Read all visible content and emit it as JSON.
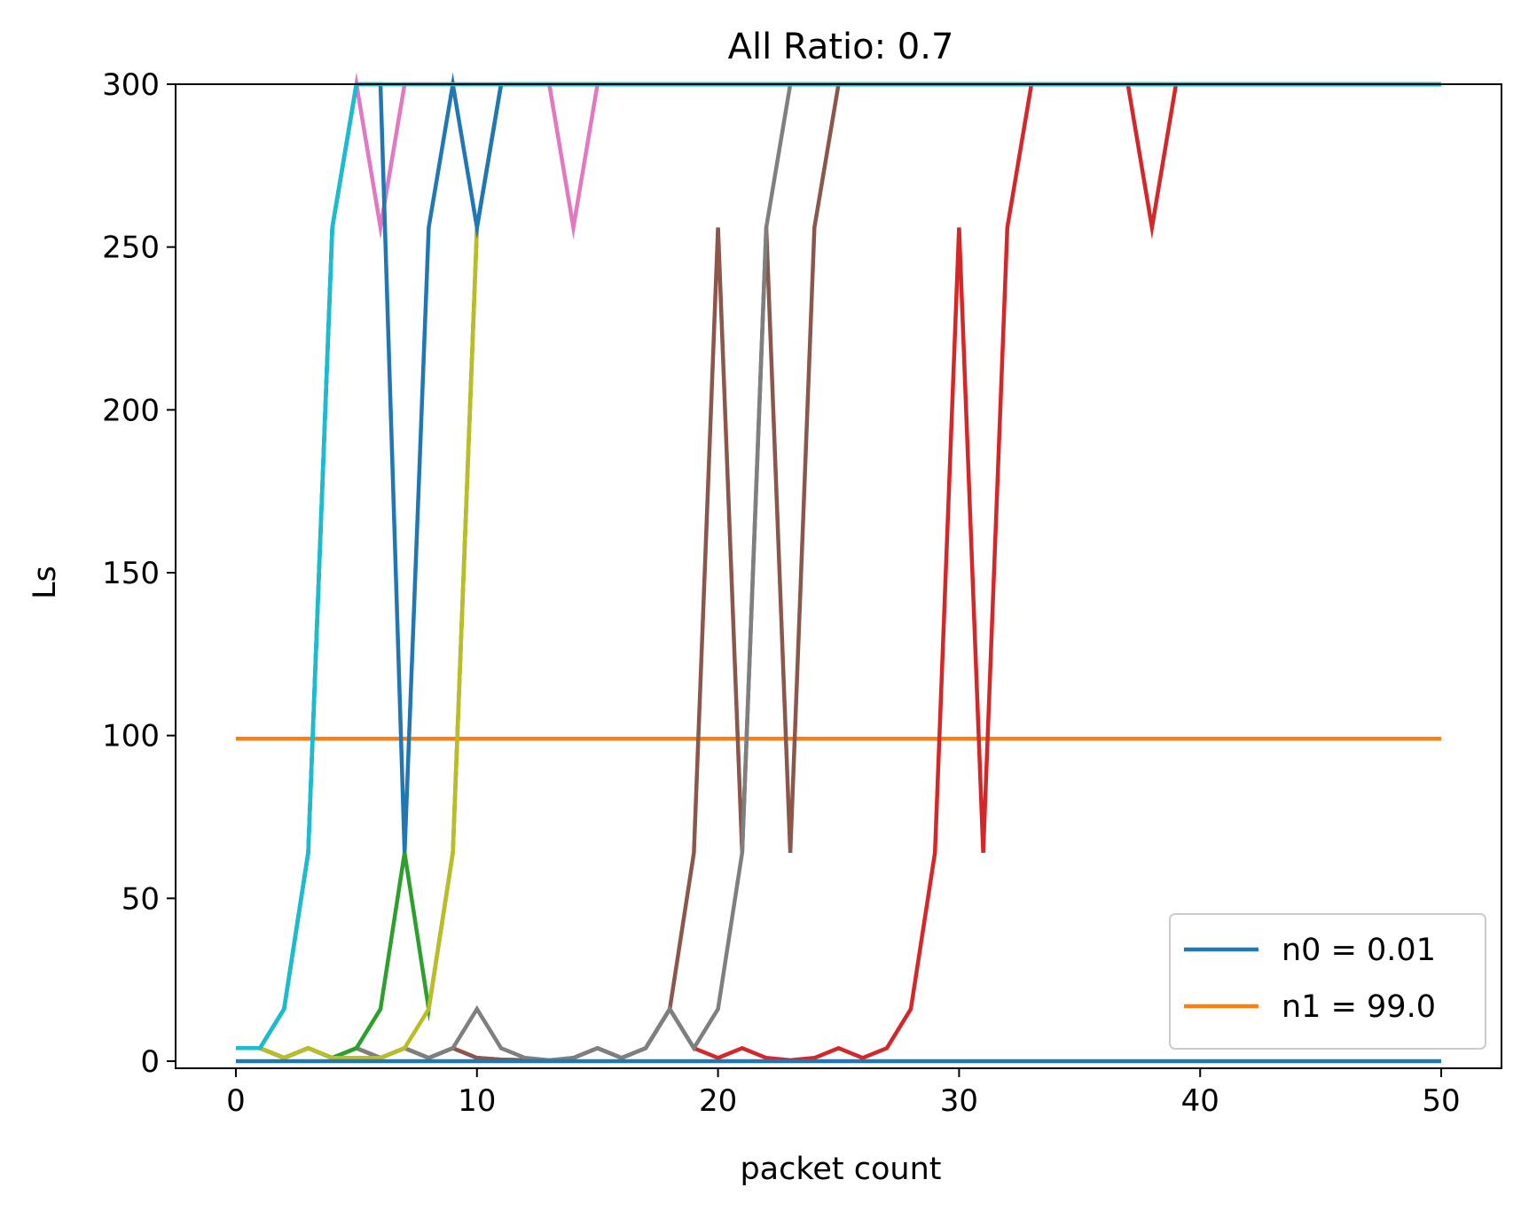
{
  "chart_data": {
    "type": "line",
    "title": "All Ratio: 0.7",
    "xlabel": "packet count",
    "ylabel": "Ls",
    "xlim": [
      -2.5,
      52.5
    ],
    "ylim": [
      0,
      300
    ],
    "xticks": [
      0,
      10,
      20,
      30,
      40,
      50
    ],
    "yticks": [
      0,
      50,
      100,
      150,
      200,
      250,
      300
    ],
    "grid": false,
    "legend": {
      "placement": "lower-right",
      "entries": [
        {
          "label": "n0 = 0.01",
          "color": "#1f77b4"
        },
        {
          "label": "n1 = 99.0",
          "color": "#ff7f0e"
        }
      ]
    },
    "x": [
      0,
      1,
      2,
      3,
      4,
      5,
      6,
      7,
      8,
      9,
      10,
      11,
      12,
      13,
      14,
      15,
      16,
      17,
      18,
      19,
      20,
      21,
      22,
      23,
      24,
      25,
      26,
      27,
      28,
      29,
      30,
      31,
      32,
      33,
      34,
      35,
      36,
      37,
      38,
      39,
      40,
      41,
      42,
      43,
      44,
      45,
      46,
      47,
      48,
      49,
      50
    ],
    "series": [
      {
        "color": "#ff7f0e",
        "values": [
          99,
          99,
          99,
          99,
          99,
          99,
          99,
          99,
          99,
          99,
          99,
          99,
          99,
          99,
          99,
          99,
          99,
          99,
          99,
          99,
          99,
          99,
          99,
          99,
          99,
          99,
          99,
          99,
          99,
          99,
          99,
          99,
          99,
          99,
          99,
          99,
          99,
          99,
          99,
          99,
          99,
          99,
          99,
          99,
          99,
          99,
          99,
          99,
          99,
          99,
          99
        ]
      },
      {
        "color": "#d62728",
        "values": [
          4,
          4,
          1,
          4,
          1,
          4,
          1,
          4,
          1,
          4,
          1,
          0.5,
          0.3,
          0.2,
          1,
          4,
          1,
          4,
          16,
          4,
          1,
          4,
          1,
          0.3,
          1,
          4,
          1,
          4,
          16,
          64,
          256,
          64,
          256,
          300,
          300,
          300,
          300,
          300,
          256,
          300,
          300,
          300,
          300,
          300,
          300,
          300,
          300,
          300,
          300,
          300,
          300
        ]
      },
      {
        "color": "#8c564b",
        "values": [
          4,
          4,
          1,
          4,
          1,
          4,
          1,
          4,
          1,
          4,
          1,
          0.5,
          0.3,
          0.2,
          1,
          4,
          1,
          4,
          16,
          64,
          256,
          64,
          256,
          64,
          256,
          300,
          300,
          300,
          300,
          300,
          300,
          300,
          300,
          300,
          300,
          300,
          300,
          300,
          300,
          300,
          300,
          300,
          300,
          300,
          300,
          300,
          300,
          300,
          300,
          300,
          300
        ]
      },
      {
        "color": "#7f7f7f",
        "values": [
          4,
          4,
          1,
          4,
          1,
          4,
          1,
          4,
          1,
          4,
          16,
          4,
          1,
          0.3,
          1,
          4,
          1,
          4,
          16,
          4,
          16,
          64,
          256,
          300,
          300,
          300,
          300,
          300,
          300,
          300,
          300,
          300,
          300,
          300,
          300,
          300,
          300,
          300,
          300,
          300,
          300,
          300,
          300,
          300,
          300,
          300,
          300,
          300,
          300,
          300,
          300
        ]
      },
      {
        "color": "#2ca02c",
        "values": [
          4,
          4,
          1,
          4,
          1,
          4,
          16,
          64,
          16,
          64,
          256,
          300,
          300,
          300,
          300,
          300,
          300,
          300,
          300,
          300,
          300,
          300,
          300,
          300,
          300,
          300,
          300,
          300,
          300,
          300,
          300,
          300,
          300,
          300,
          300,
          300,
          300,
          300,
          300,
          300,
          300,
          300,
          300,
          300,
          300,
          300,
          300,
          300,
          300,
          300,
          300
        ]
      },
      {
        "color": "#bcbd22",
        "values": [
          4,
          4,
          1,
          4,
          1,
          1,
          1,
          4,
          16,
          64,
          256,
          300,
          300,
          300,
          300,
          300,
          300,
          300,
          300,
          300,
          300,
          300,
          300,
          300,
          300,
          300,
          300,
          300,
          300,
          300,
          300,
          300,
          300,
          300,
          300,
          300,
          300,
          300,
          300,
          300,
          300,
          300,
          300,
          300,
          300,
          300,
          300,
          300,
          300,
          300,
          300
        ]
      },
      {
        "color": "#e377c2",
        "values": [
          4,
          4,
          16,
          64,
          256,
          300,
          256,
          300,
          300,
          300,
          300,
          300,
          300,
          300,
          256,
          300,
          300,
          300,
          300,
          300,
          300,
          300,
          300,
          300,
          300,
          300,
          300,
          300,
          300,
          300,
          300,
          300,
          300,
          300,
          300,
          300,
          300,
          300,
          300,
          300,
          300,
          300,
          300,
          300,
          300,
          300,
          300,
          300,
          300,
          300,
          300
        ]
      },
      {
        "color": "#1f77b4",
        "values": [
          4,
          4,
          16,
          64,
          256,
          300,
          300,
          64,
          256,
          300,
          256,
          300,
          300,
          300,
          300,
          300,
          300,
          300,
          300,
          300,
          300,
          300,
          300,
          300,
          300,
          300,
          300,
          300,
          300,
          300,
          300,
          300,
          300,
          300,
          300,
          300,
          300,
          300,
          300,
          300,
          300,
          300,
          300,
          300,
          300,
          300,
          300,
          300,
          300,
          300,
          300
        ]
      },
      {
        "color": "#17becf",
        "values": [
          4,
          4,
          16,
          64,
          256,
          300,
          300,
          300,
          300,
          300,
          300,
          300,
          300,
          300,
          300,
          300,
          300,
          300,
          300,
          300,
          300,
          300,
          300,
          300,
          300,
          300,
          300,
          300,
          300,
          300,
          300,
          300,
          300,
          300,
          300,
          300,
          300,
          300,
          300,
          300,
          300,
          300,
          300,
          300,
          300,
          300,
          300,
          300,
          300,
          300,
          300
        ]
      },
      {
        "color": "#1f77b4",
        "values": [
          0,
          0,
          0,
          0,
          0,
          0,
          0,
          0,
          0,
          0,
          0,
          0,
          0,
          0,
          0,
          0,
          0,
          0,
          0,
          0,
          0,
          0,
          0,
          0,
          0,
          0,
          0,
          0,
          0,
          0,
          0,
          0,
          0,
          0,
          0,
          0,
          0,
          0,
          0,
          0,
          0,
          0,
          0,
          0,
          0,
          0,
          0,
          0,
          0,
          0,
          0
        ]
      }
    ]
  }
}
